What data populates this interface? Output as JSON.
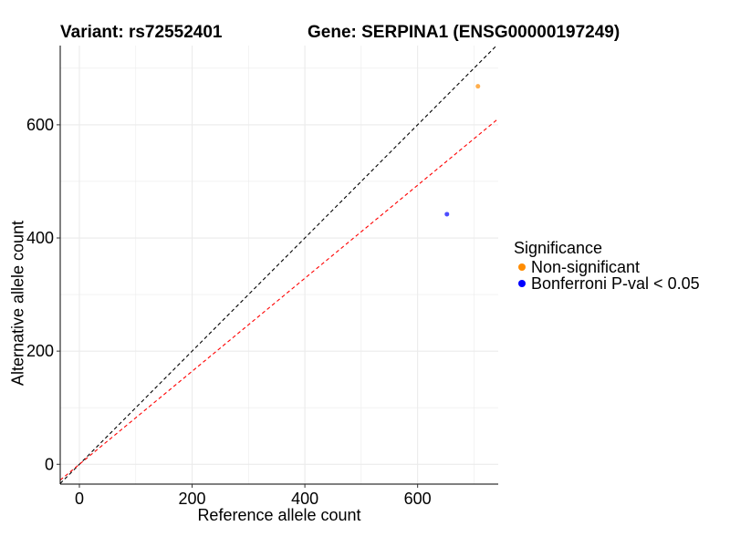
{
  "chart_data": {
    "type": "scatter",
    "title_left": "Variant: rs72552401",
    "title_right": "Gene: SERPINA1 (ENSG00000197249)",
    "xlabel": "Reference allele count",
    "ylabel": "Alternative allele count",
    "xlim": [
      -34,
      743
    ],
    "ylim": [
      -35,
      740
    ],
    "xticks": [
      0,
      200,
      400,
      600
    ],
    "yticks": [
      0,
      200,
      400,
      600
    ],
    "grid": true,
    "points": [
      {
        "x": 707,
        "y": 668,
        "group": "Non-significant"
      },
      {
        "x": 652,
        "y": 442,
        "group": "Bonferroni P-val < 0.05"
      }
    ],
    "lines": [
      {
        "name": "identity",
        "slope": 1,
        "intercept": 0,
        "color": "#000000",
        "style": "dashed"
      },
      {
        "name": "fit",
        "slope": 0.822,
        "intercept": 0,
        "color": "#ff0000",
        "style": "dashed"
      }
    ],
    "legend": {
      "title": "Significance",
      "position": "right",
      "entries": [
        {
          "label": "Non-significant",
          "color": "#ff8c00"
        },
        {
          "label": "Bonferroni P-val < 0.05",
          "color": "#0000ff"
        }
      ]
    }
  }
}
